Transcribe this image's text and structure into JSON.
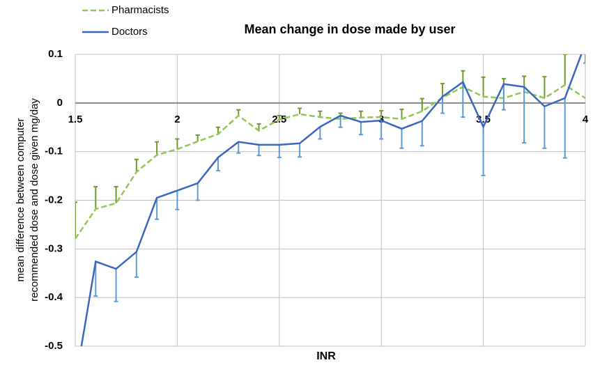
{
  "chart_data": {
    "type": "line",
    "title": "Mean change in dose made by user",
    "xlabel": "INR",
    "ylabel": [
      "mean difference between computer",
      "recommended dose and dose given mg/day"
    ],
    "x": [
      1.5,
      1.6,
      1.7,
      1.8,
      1.9,
      2.0,
      2.1,
      2.2,
      2.3,
      2.4,
      2.5,
      2.6,
      2.7,
      2.8,
      2.9,
      3.0,
      3.1,
      3.2,
      3.3,
      3.4,
      3.5,
      3.6,
      3.7,
      3.8,
      3.9,
      4.0
    ],
    "xlim": [
      1.5,
      4
    ],
    "xticks": [
      1.5,
      2,
      2.5,
      3,
      3.5,
      4
    ],
    "ylim": [
      -0.5,
      0.1
    ],
    "yticks": [
      0.1,
      0,
      -0.1,
      -0.2,
      -0.3,
      -0.4,
      -0.5
    ],
    "grid": true,
    "legend": "top-left",
    "series": [
      {
        "name": "Pharmacists",
        "color": "#92c754",
        "error_color": "#6e9a2e",
        "dash": true,
        "error_direction": "up",
        "values": [
          -0.279,
          -0.218,
          -0.206,
          -0.142,
          -0.107,
          -0.095,
          -0.079,
          -0.064,
          -0.026,
          -0.057,
          -0.034,
          -0.023,
          -0.029,
          -0.033,
          -0.03,
          -0.029,
          -0.033,
          -0.017,
          0.011,
          0.033,
          0.013,
          0.01,
          0.023,
          0.01,
          0.037,
          0.01
        ],
        "errors": [
          0.075,
          0.046,
          0.034,
          0.026,
          0.027,
          0.021,
          0.013,
          0.014,
          0.012,
          0.014,
          0.008,
          0.012,
          0.012,
          0.012,
          0.013,
          0.013,
          0.02,
          0.026,
          0.029,
          0.033,
          0.04,
          0.04,
          0.032,
          0.044,
          0.063,
          null
        ]
      },
      {
        "name": "Doctors",
        "color": "#3a66c0",
        "error_color": "#5b9bd5",
        "dash": false,
        "error_direction": "down",
        "values": [
          -0.575,
          -0.326,
          -0.341,
          -0.306,
          -0.195,
          -0.18,
          -0.165,
          -0.112,
          -0.08,
          -0.086,
          -0.086,
          -0.083,
          -0.049,
          -0.026,
          -0.039,
          -0.036,
          -0.053,
          -0.037,
          0.013,
          0.043,
          -0.049,
          0.039,
          0.033,
          -0.007,
          0.01,
          0.122
        ],
        "errors": [
          null,
          0.071,
          0.067,
          0.052,
          0.044,
          0.039,
          0.035,
          0.027,
          0.023,
          0.022,
          0.026,
          0.028,
          0.025,
          0.024,
          0.026,
          0.038,
          0.04,
          0.051,
          0.034,
          0.072,
          0.1,
          0.053,
          0.115,
          0.086,
          0.123,
          0.04
        ]
      }
    ]
  }
}
